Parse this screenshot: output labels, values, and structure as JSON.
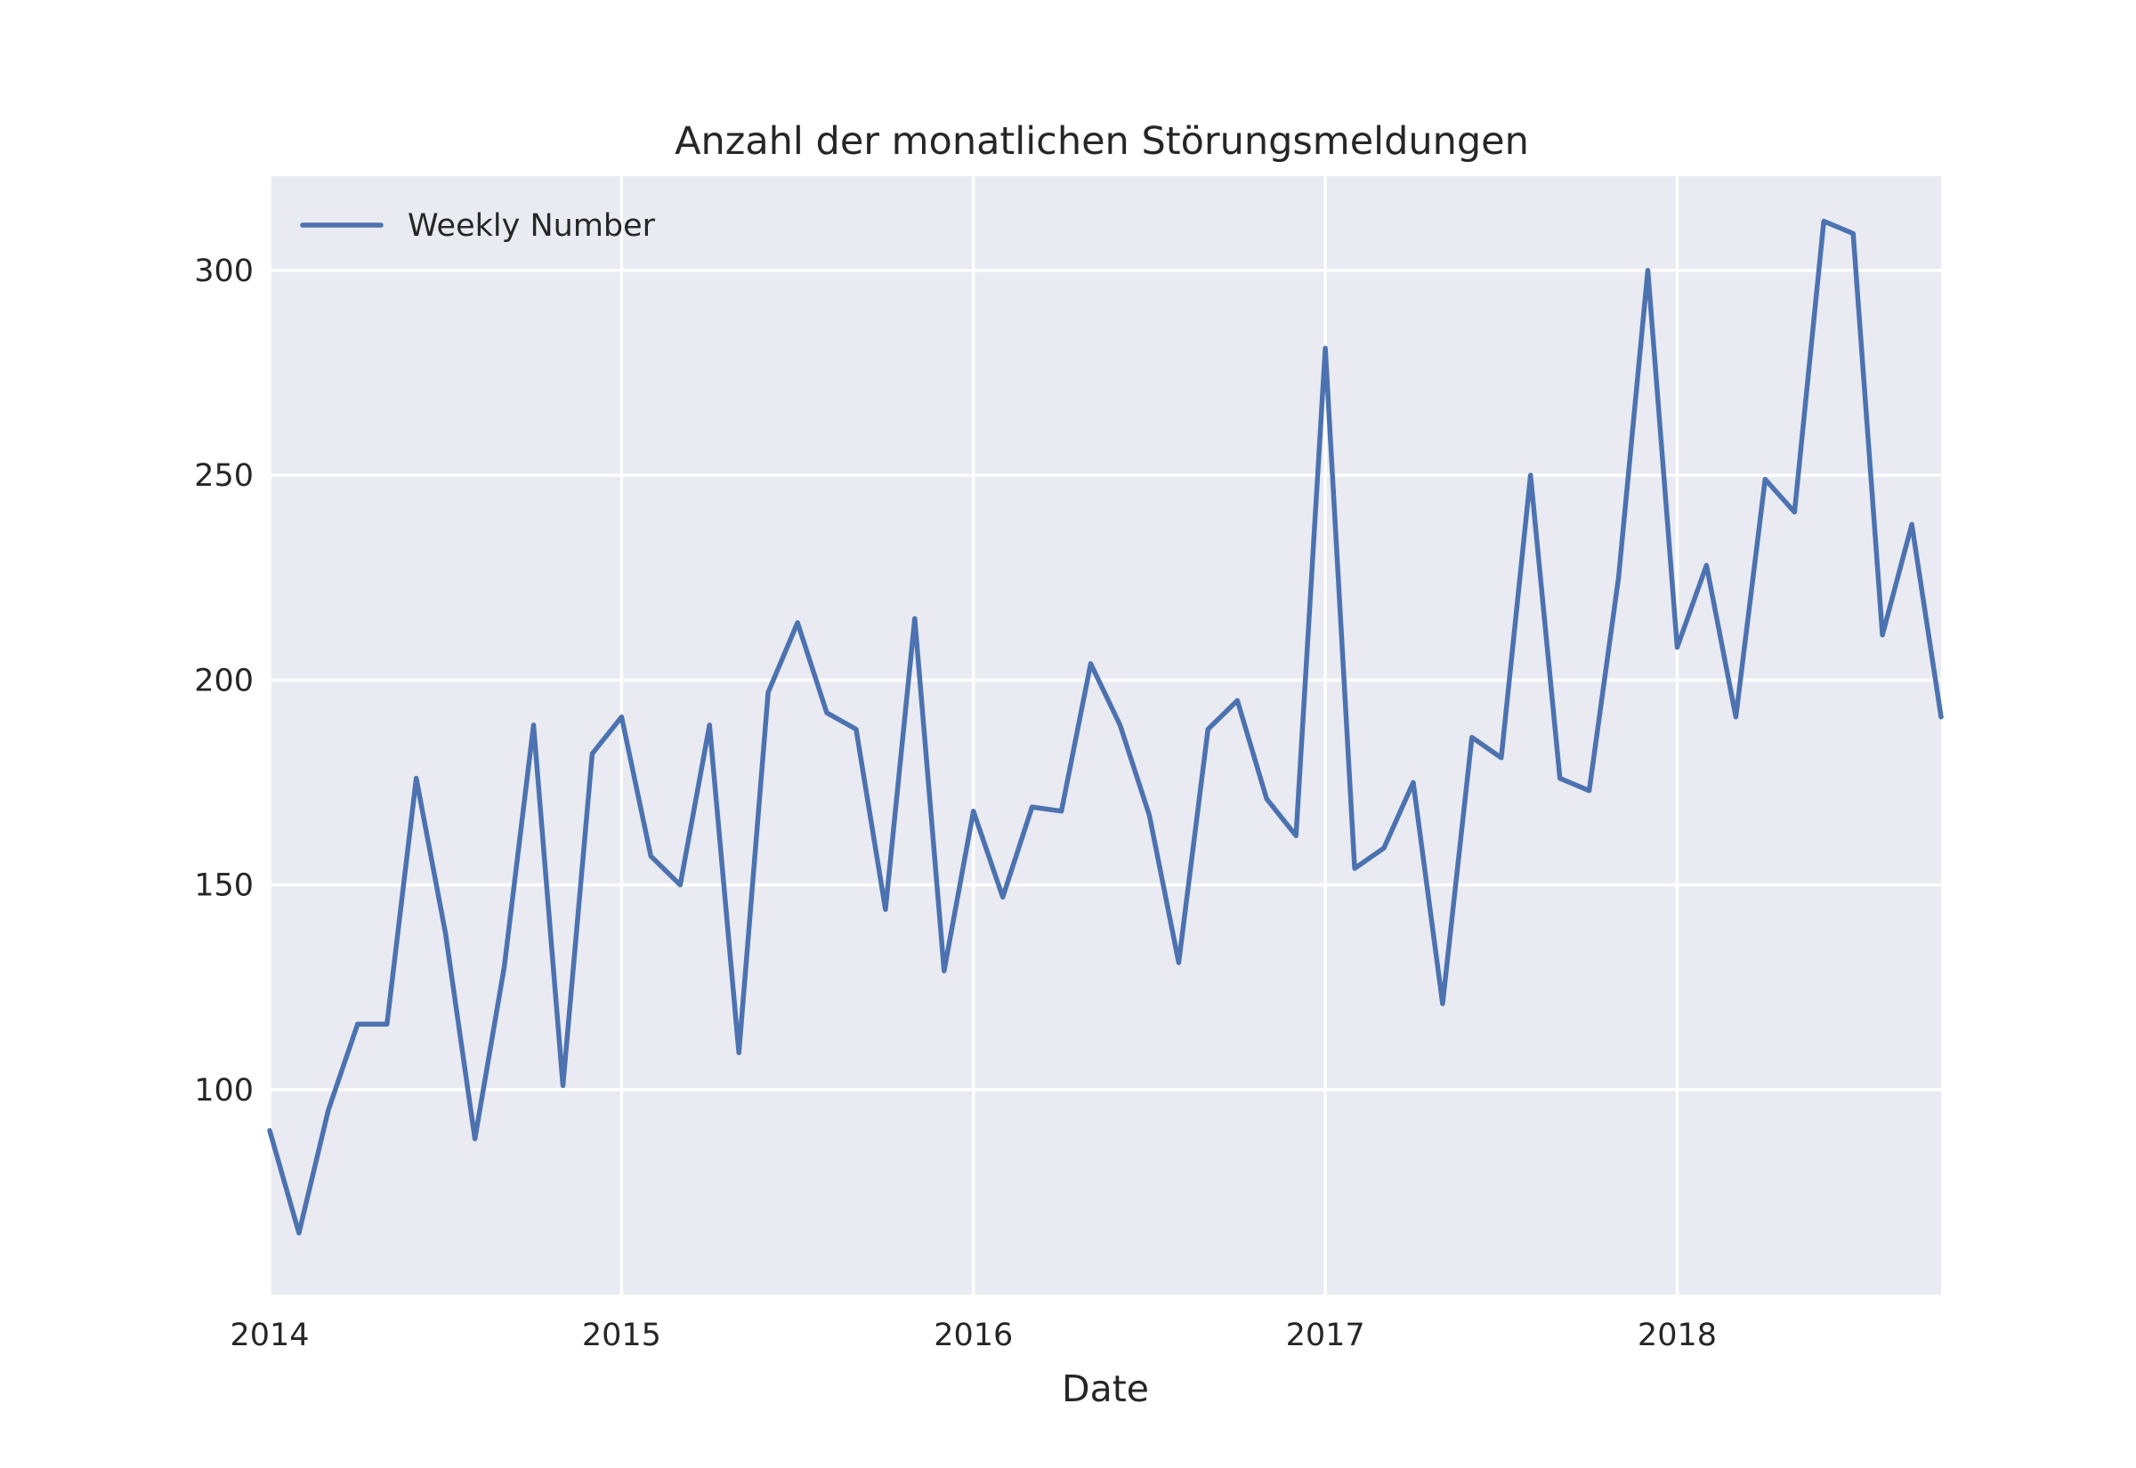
{
  "chart_data": {
    "type": "line",
    "title": "Anzahl der monatlichen Störungsmeldungen",
    "xlabel": "Date",
    "ylabel": "",
    "xlim": [
      "2014-01",
      "2018-10"
    ],
    "ylim": [
      50,
      323
    ],
    "x_ticks": [
      "2014",
      "2015",
      "2016",
      "2017",
      "2018"
    ],
    "y_ticks": [
      100,
      150,
      200,
      250,
      300
    ],
    "grid": true,
    "legend": "top-left",
    "colors": {
      "series": "#4c72b0",
      "plot_background": "#eaeaf2",
      "grid": "#ffffff"
    },
    "series": [
      {
        "name": "Weekly Number",
        "x": [
          "2014-01",
          "2014-02",
          "2014-03",
          "2014-04",
          "2014-05",
          "2014-06",
          "2014-07",
          "2014-08",
          "2014-09",
          "2014-10",
          "2014-11",
          "2014-12",
          "2015-01",
          "2015-02",
          "2015-03",
          "2015-04",
          "2015-05",
          "2015-06",
          "2015-07",
          "2015-08",
          "2015-09",
          "2015-10",
          "2015-11",
          "2015-12",
          "2016-01",
          "2016-02",
          "2016-03",
          "2016-04",
          "2016-05",
          "2016-06",
          "2016-07",
          "2016-08",
          "2016-09",
          "2016-10",
          "2016-11",
          "2016-12",
          "2017-01",
          "2017-02",
          "2017-03",
          "2017-04",
          "2017-05",
          "2017-06",
          "2017-07",
          "2017-08",
          "2017-09",
          "2017-10",
          "2017-11",
          "2017-12",
          "2018-01",
          "2018-02",
          "2018-03",
          "2018-04",
          "2018-05",
          "2018-06",
          "2018-07",
          "2018-08",
          "2018-09",
          "2018-10"
        ],
        "values": [
          90,
          65,
          95,
          116,
          116,
          176,
          138,
          88,
          130,
          189,
          101,
          182,
          191,
          157,
          150,
          189,
          109,
          197,
          214,
          192,
          188,
          144,
          215,
          129,
          168,
          147,
          169,
          168,
          204,
          189,
          167,
          131,
          188,
          195,
          171,
          162,
          281,
          154,
          159,
          175,
          121,
          186,
          181,
          250,
          176,
          173,
          225,
          300,
          208,
          228,
          191,
          249,
          241,
          312,
          309,
          211,
          238,
          191
        ]
      }
    ]
  }
}
